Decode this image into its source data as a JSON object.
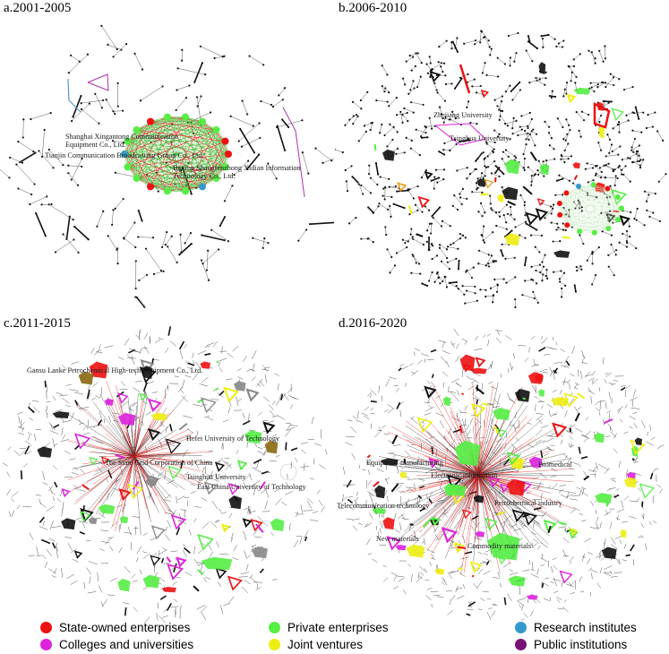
{
  "panels": [
    {
      "title": "a.2001-2005",
      "labels": [
        "Shanghai Xingantong Communication",
        "Equipment Co., Ltd.",
        "Tianjin Communication Broadcasting Group Co., Ltd.",
        "Beijing Shangfenzhong Xidian Information",
        "Technology Co., Ltd."
      ]
    },
    {
      "title": "b.2006-2010",
      "labels": [
        "Zhejiang University",
        "Tsinghua University"
      ]
    },
    {
      "title": "c.2011-2015",
      "labels": [
        "Gansu Lanke Petrochemical High-tech Equipment Co., Ltd.",
        "Hefei University of Technology",
        "The State Grid Corporation of China",
        "Tsinghua University",
        "East China University of Technology"
      ]
    },
    {
      "title": "d.2016-2020",
      "labels": [
        "Equipment manufacturing",
        "Electronic information",
        "Biomedical",
        "Telecommunication technology",
        "Petrochemical industry",
        "New materials",
        "Commodity materials"
      ]
    }
  ],
  "legend": [
    {
      "label": "State-owned enterprises",
      "color": "#ee1111"
    },
    {
      "label": "Private enterprises",
      "color": "#55ee44"
    },
    {
      "label": "Research institutes",
      "color": "#3399cc"
    },
    {
      "label": "Colleges and universities",
      "color": "#dd22dd"
    },
    {
      "label": "Joint ventures",
      "color": "#eeee11"
    },
    {
      "label": "Public institutions",
      "color": "#771177"
    }
  ]
}
